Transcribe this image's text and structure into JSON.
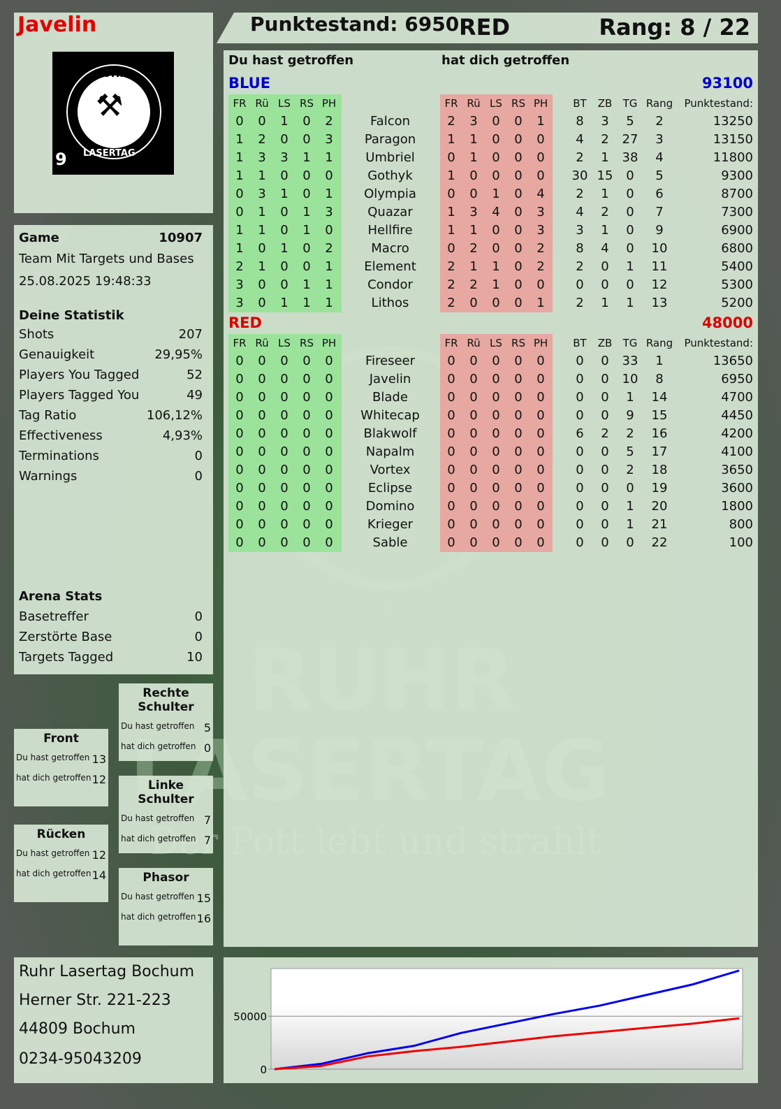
{
  "player": {
    "name": "Javelin",
    "score_label": "Punktestand: 6950",
    "team": "RED",
    "rank_label": "Rang: 8 / 22"
  },
  "logo": {
    "top": "RUHR",
    "bottom": "LASERTAG",
    "number": "9"
  },
  "watermark": {
    "line1": "RUHR",
    "line2": "LASERTAG",
    "tagline": "Der Pott lebt und strahlt"
  },
  "game": {
    "label": "Game",
    "id": "10907",
    "mode": "Team Mit Targets und Bases",
    "datetime": "25.08.2025 19:48:33"
  },
  "stats": {
    "title": "Deine Statistik",
    "items": [
      {
        "label": "Shots",
        "value": "207"
      },
      {
        "label": "Genauigkeit",
        "value": "29,95%"
      },
      {
        "label": "Players You Tagged",
        "value": "52"
      },
      {
        "label": "Players Tagged You",
        "value": "49"
      },
      {
        "label": "Tag Ratio",
        "value": "106,12%"
      },
      {
        "label": "Effectiveness",
        "value": "4,93%"
      },
      {
        "label": "Terminations",
        "value": "0"
      },
      {
        "label": "Warnings",
        "value": "0"
      }
    ]
  },
  "arena": {
    "title": "Arena Stats",
    "items": [
      {
        "label": "Basetreffer",
        "value": "0"
      },
      {
        "label": "Zerstörte Base",
        "value": "0"
      },
      {
        "label": "Targets Tagged",
        "value": "10"
      }
    ]
  },
  "zones": [
    {
      "title": "Rechte Schulter",
      "hit_label": "Du hast getroffen",
      "hit": "5",
      "got_label": "hat dich getroffen",
      "got": "0"
    },
    {
      "title": "Front",
      "hit_label": "Du hast getroffen",
      "hit": "13",
      "got_label": "hat dich getroffen",
      "got": "12"
    },
    {
      "title": "Linke Schulter",
      "hit_label": "Du hast getroffen",
      "hit": "7",
      "got_label": "hat dich getroffen",
      "got": "7"
    },
    {
      "title": "Rücken",
      "hit_label": "Du hast getroffen",
      "hit": "12",
      "got_label": "hat dich getroffen",
      "got": "14"
    },
    {
      "title": "Phasor",
      "hit_label": "Du hast getroffen",
      "hit": "15",
      "got_label": "hat dich getroffen",
      "got": "16"
    }
  ],
  "address": {
    "line1": "Ruhr Lasertag Bochum",
    "line2": "Herner Str. 221-223",
    "line3": "44809 Bochum",
    "line4": "0234-95043209"
  },
  "table": {
    "you_hit": "Du hast getroffen",
    "hit_you": "hat dich getroffen",
    "columns": [
      "FR",
      "Rü",
      "LS",
      "RS",
      "PH",
      "",
      "FR",
      "Rü",
      "LS",
      "RS",
      "PH",
      "",
      "BT",
      "ZB",
      "TG",
      "Rang",
      "Punktestand:"
    ],
    "teams": [
      {
        "name": "BLUE",
        "total": "93100",
        "color": "#0000cc",
        "rows": [
          [
            "0",
            "0",
            "1",
            "0",
            "2",
            "Falcon",
            "2",
            "3",
            "0",
            "0",
            "1",
            "8",
            "3",
            "5",
            "2",
            "13250"
          ],
          [
            "1",
            "2",
            "0",
            "0",
            "3",
            "Paragon",
            "1",
            "1",
            "0",
            "0",
            "0",
            "4",
            "2",
            "27",
            "3",
            "13150"
          ],
          [
            "1",
            "3",
            "3",
            "1",
            "1",
            "Umbriel",
            "0",
            "1",
            "0",
            "0",
            "0",
            "2",
            "1",
            "38",
            "4",
            "11800"
          ],
          [
            "1",
            "1",
            "0",
            "0",
            "0",
            "Gothyk",
            "1",
            "0",
            "0",
            "0",
            "0",
            "30",
            "15",
            "0",
            "5",
            "9300"
          ],
          [
            "0",
            "3",
            "1",
            "0",
            "1",
            "Olympia",
            "0",
            "0",
            "1",
            "0",
            "4",
            "2",
            "1",
            "0",
            "6",
            "8700"
          ],
          [
            "0",
            "1",
            "0",
            "1",
            "3",
            "Quazar",
            "1",
            "3",
            "4",
            "0",
            "3",
            "4",
            "2",
            "0",
            "7",
            "7300"
          ],
          [
            "1",
            "1",
            "0",
            "1",
            "0",
            "Hellfire",
            "1",
            "1",
            "0",
            "0",
            "3",
            "3",
            "1",
            "0",
            "9",
            "6900"
          ],
          [
            "1",
            "0",
            "1",
            "0",
            "2",
            "Macro",
            "0",
            "2",
            "0",
            "0",
            "2",
            "8",
            "4",
            "0",
            "10",
            "6800"
          ],
          [
            "2",
            "1",
            "0",
            "0",
            "1",
            "Element",
            "2",
            "1",
            "1",
            "0",
            "2",
            "2",
            "0",
            "1",
            "11",
            "5400"
          ],
          [
            "3",
            "0",
            "0",
            "1",
            "1",
            "Condor",
            "2",
            "2",
            "1",
            "0",
            "0",
            "0",
            "0",
            "0",
            "12",
            "5300"
          ],
          [
            "3",
            "0",
            "1",
            "1",
            "1",
            "Lithos",
            "2",
            "0",
            "0",
            "0",
            "1",
            "2",
            "1",
            "1",
            "13",
            "5200"
          ]
        ]
      },
      {
        "name": "RED",
        "total": "48000",
        "color": "#dd0000",
        "rows": [
          [
            "0",
            "0",
            "0",
            "0",
            "0",
            "Fireseer",
            "0",
            "0",
            "0",
            "0",
            "0",
            "0",
            "0",
            "33",
            "1",
            "13650"
          ],
          [
            "0",
            "0",
            "0",
            "0",
            "0",
            "Javelin",
            "0",
            "0",
            "0",
            "0",
            "0",
            "0",
            "0",
            "10",
            "8",
            "6950"
          ],
          [
            "0",
            "0",
            "0",
            "0",
            "0",
            "Blade",
            "0",
            "0",
            "0",
            "0",
            "0",
            "0",
            "0",
            "1",
            "14",
            "4700"
          ],
          [
            "0",
            "0",
            "0",
            "0",
            "0",
            "Whitecap",
            "0",
            "0",
            "0",
            "0",
            "0",
            "0",
            "0",
            "9",
            "15",
            "4450"
          ],
          [
            "0",
            "0",
            "0",
            "0",
            "0",
            "Blakwolf",
            "0",
            "0",
            "0",
            "0",
            "0",
            "6",
            "2",
            "2",
            "16",
            "4200"
          ],
          [
            "0",
            "0",
            "0",
            "0",
            "0",
            "Napalm",
            "0",
            "0",
            "0",
            "0",
            "0",
            "0",
            "0",
            "5",
            "17",
            "4100"
          ],
          [
            "0",
            "0",
            "0",
            "0",
            "0",
            "Vortex",
            "0",
            "0",
            "0",
            "0",
            "0",
            "0",
            "0",
            "2",
            "18",
            "3650"
          ],
          [
            "0",
            "0",
            "0",
            "0",
            "0",
            "Eclipse",
            "0",
            "0",
            "0",
            "0",
            "0",
            "0",
            "0",
            "0",
            "19",
            "3600"
          ],
          [
            "0",
            "0",
            "0",
            "0",
            "0",
            "Domino",
            "0",
            "0",
            "0",
            "0",
            "0",
            "0",
            "0",
            "1",
            "20",
            "1800"
          ],
          [
            "0",
            "0",
            "0",
            "0",
            "0",
            "Krieger",
            "0",
            "0",
            "0",
            "0",
            "0",
            "0",
            "0",
            "1",
            "21",
            "800"
          ],
          [
            "0",
            "0",
            "0",
            "0",
            "0",
            "Sable",
            "0",
            "0",
            "0",
            "0",
            "0",
            "0",
            "0",
            "0",
            "22",
            "100"
          ]
        ]
      }
    ]
  },
  "chart_data": {
    "type": "line",
    "title": "",
    "xlabel": "",
    "ylabel": "",
    "ylim": [
      0,
      95000
    ],
    "yticks": [
      "0",
      "50000"
    ],
    "grid": true,
    "x": [
      0,
      1,
      2,
      3,
      4,
      5,
      6,
      7,
      8,
      9,
      10
    ],
    "series": [
      {
        "color": "#0000ee",
        "values": [
          0,
          5000,
          15000,
          22000,
          34000,
          43000,
          52000,
          60000,
          70000,
          80000,
          93100
        ]
      },
      {
        "color": "#ee0000",
        "values": [
          0,
          3000,
          12000,
          17000,
          21000,
          26000,
          31000,
          35000,
          39000,
          43000,
          48000
        ]
      }
    ]
  },
  "colors": {
    "accent_red": "#e00000",
    "hit_green": "#9be39b",
    "hit_red": "#e6a8a0"
  }
}
